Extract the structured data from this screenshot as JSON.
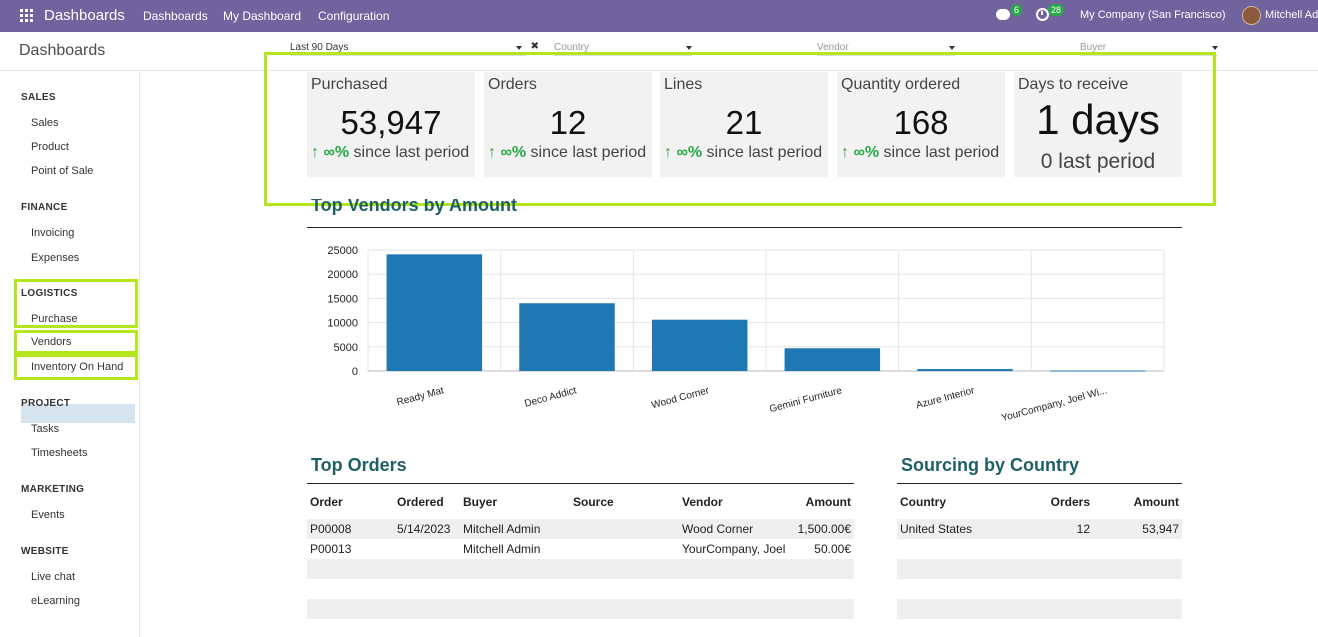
{
  "navbar": {
    "brand": "Dashboards",
    "menu": [
      "Dashboards",
      "My Dashboard",
      "Configuration"
    ],
    "messages_count": "6",
    "activities_count": "28",
    "company": "My Company (San Francisco)",
    "user": "Mitchell Ad",
    "color": "#71639e"
  },
  "header": {
    "title": "Dashboards",
    "filters": {
      "period": "Last 90 Days",
      "country": "Country",
      "vendor": "Vendor",
      "buyer": "Buyer"
    }
  },
  "sidebar": {
    "sections": [
      {
        "title": "SALES",
        "items": [
          "Sales",
          "Product",
          "Point of Sale"
        ]
      },
      {
        "title": "FINANCE",
        "items": [
          "Invoicing",
          "Expenses"
        ]
      },
      {
        "title": "LOGISTICS",
        "items": [
          "Purchase",
          "Vendors",
          "Inventory On Hand"
        ]
      },
      {
        "title": "PROJECT",
        "items": [
          "Tasks",
          "Timesheets"
        ]
      },
      {
        "title": "MARKETING",
        "items": [
          "Events"
        ]
      },
      {
        "title": "WEBSITE",
        "items": [
          "Live chat",
          "eLearning"
        ]
      }
    ],
    "active_item": "Vendors"
  },
  "kpis": [
    {
      "label": "Purchased",
      "value": "53,947",
      "arrow": "↑",
      "pct": "∞%",
      "suffix": " since last period"
    },
    {
      "label": "Orders",
      "value": "12",
      "arrow": "↑",
      "pct": "∞%",
      "suffix": " since last period"
    },
    {
      "label": "Lines",
      "value": "21",
      "arrow": "↑",
      "pct": "∞%",
      "suffix": " since last period"
    },
    {
      "label": "Quantity ordered",
      "value": "168",
      "arrow": "↑",
      "pct": "∞%",
      "suffix": " since last period"
    },
    {
      "label": "Days to receive",
      "value": "1 days",
      "prev": "0 last period"
    }
  ],
  "vendors_chart": {
    "title": "Top Vendors by Amount"
  },
  "chart_data": {
    "type": "bar",
    "title": "Top Vendors by Amount",
    "categories": [
      "Ready Mat",
      "Deco Addict",
      "Wood Corner",
      "Gemini Furniture",
      "Azure Interior",
      "YourCompany, Joel Wi..."
    ],
    "values": [
      24100,
      14000,
      10600,
      4700,
      400,
      100
    ],
    "ylim": [
      0,
      25000
    ],
    "yticks": [
      0,
      5000,
      10000,
      15000,
      20000,
      25000
    ],
    "grid": true,
    "color": "#1f77b4"
  },
  "top_orders": {
    "title": "Top Orders",
    "columns": [
      "Order",
      "Ordered",
      "Buyer",
      "Source",
      "Vendor",
      "Amount"
    ],
    "rows": [
      [
        "P00008",
        "5/14/2023",
        "Mitchell Admin",
        "",
        "Wood Corner",
        "1,500.00€"
      ],
      [
        "P00013",
        "",
        "Mitchell Admin",
        "",
        "YourCompany, Joel Willis",
        "50.00€"
      ]
    ]
  },
  "sourcing": {
    "title": "Sourcing by Country",
    "columns": [
      "Country",
      "Orders",
      "Amount"
    ],
    "rows": [
      [
        "United States",
        "12",
        "53,947"
      ]
    ]
  },
  "highlight_color": "#b5e61d"
}
